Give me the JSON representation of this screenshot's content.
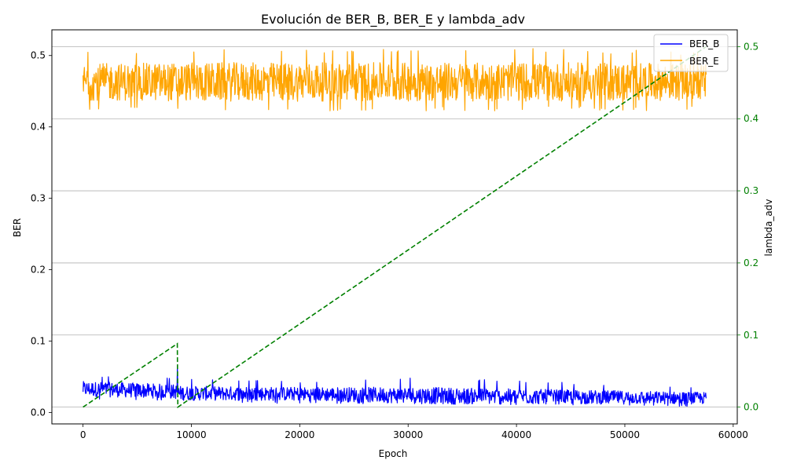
{
  "chart_data": {
    "type": "line",
    "title": "Evolución de BER_B, BER_E y lambda_adv",
    "xlabel": "Epoch",
    "ylabel": "BER",
    "ylabel_right": "lambda_adv",
    "xlim": [
      -2875,
      60375
    ],
    "ylim": [
      -0.016,
      0.536
    ],
    "ylim_right": [
      -0.0233,
      0.5233
    ],
    "x_ticks": [
      0,
      10000,
      20000,
      30000,
      40000,
      50000,
      60000
    ],
    "y_ticks": [
      0.0,
      0.1,
      0.2,
      0.3,
      0.4,
      0.5
    ],
    "y_ticks_right": [
      0.0,
      0.1,
      0.2,
      0.3,
      0.4,
      0.5
    ],
    "grid": "horizontal lines at right-axis ticks",
    "legend": "top-right",
    "colors": {
      "ber_b": "#0000ff",
      "ber_e": "#ffa500",
      "lambda": "#008000",
      "grid": "#b0b0b0",
      "right_axis": "#008000"
    },
    "series": [
      {
        "name": "BER_B",
        "axis": "left",
        "style": "solid",
        "x_range": [
          0,
          57500
        ],
        "band_center": [
          [
            0,
            0.033
          ],
          [
            5000,
            0.031
          ],
          [
            8700,
            0.029
          ],
          [
            8800,
            0.027
          ],
          [
            20000,
            0.026
          ],
          [
            35000,
            0.023
          ],
          [
            50000,
            0.021
          ],
          [
            57500,
            0.02
          ]
        ],
        "band_min": [
          [
            0,
            0.018
          ],
          [
            20000,
            0.012
          ],
          [
            57500,
            0.008
          ]
        ],
        "band_max": [
          [
            0,
            0.052
          ],
          [
            20000,
            0.043
          ],
          [
            32000,
            0.049
          ],
          [
            57500,
            0.035
          ]
        ],
        "spike": {
          "x": 8700,
          "y": 0.065
        }
      },
      {
        "name": "BER_E",
        "axis": "left",
        "style": "solid",
        "x_range": [
          0,
          57500
        ],
        "band_center": [
          [
            0,
            0.463
          ],
          [
            57500,
            0.463
          ]
        ],
        "band_min": [
          [
            0,
            0.422
          ],
          [
            57500,
            0.423
          ]
        ],
        "band_max": [
          [
            0,
            0.505
          ],
          [
            11000,
            0.51
          ],
          [
            46000,
            0.51
          ],
          [
            57500,
            0.505
          ]
        ]
      },
      {
        "name": "lambda_adv",
        "axis": "right",
        "style": "dashed",
        "x": [
          0,
          8700,
          8750,
          57500
        ],
        "y": [
          0.0,
          0.088,
          0.0,
          0.5
        ]
      }
    ]
  }
}
